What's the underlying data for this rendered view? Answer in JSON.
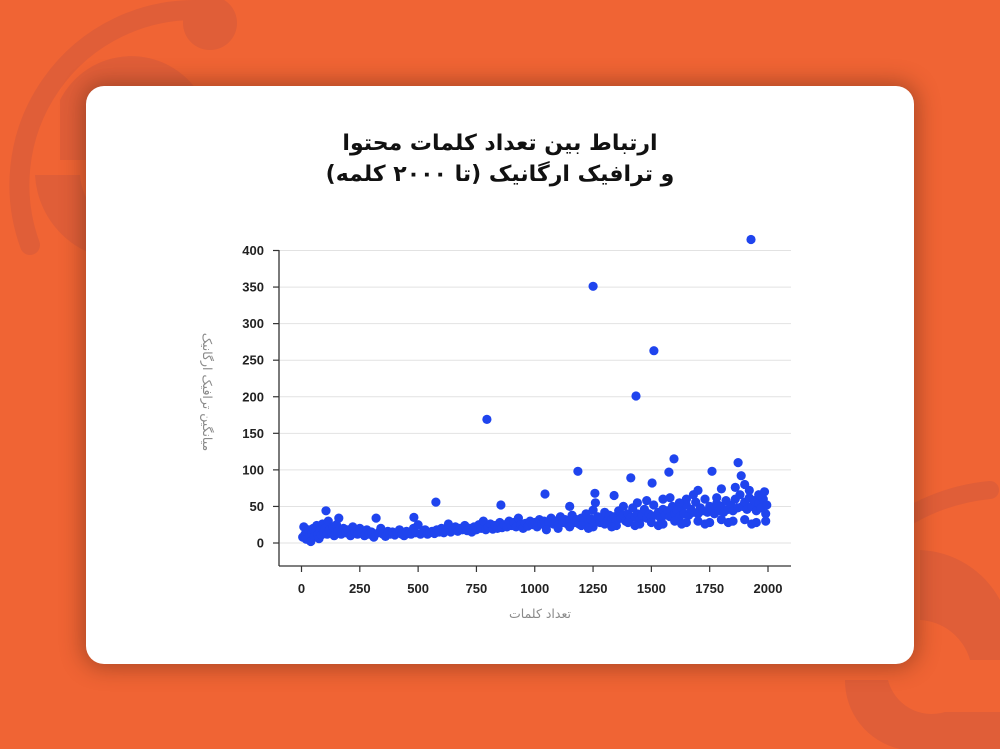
{
  "colors": {
    "background": "#f06434",
    "background_deco": "#e05e38",
    "card": "#ffffff",
    "point": "#1f44ee",
    "grid": "#e2e2e2",
    "axis": "#333333"
  },
  "title_line1": "ارتباط بین تعداد کلمات محتوا",
  "title_line2": "و ترافیک ارگانیک (تا ۲۰۰۰ کلمه)",
  "chart_data": {
    "type": "scatter",
    "title": "ارتباط بین تعداد کلمات محتوا و ترافیک ارگانیک (تا ۲۰۰۰ کلمه)",
    "xlabel": "تعداد کلمات",
    "ylabel": "میانگین ترافیک ارگانیک",
    "xlim": [
      -100,
      2100
    ],
    "ylim": [
      -30,
      415
    ],
    "x_ticks": [
      0,
      250,
      500,
      750,
      1000,
      1250,
      1500,
      1750,
      2000
    ],
    "x_tick_labels": [
      "0",
      "250",
      "500",
      "750",
      "1000",
      "1250",
      "1500",
      "1750",
      "2000"
    ],
    "y_ticks": [
      0,
      50,
      100,
      150,
      200,
      250,
      300,
      350,
      400
    ],
    "y_tick_labels": [
      "0",
      "50",
      "100",
      "150",
      "200",
      "250",
      "300",
      "350",
      "400"
    ],
    "grid": "horizontal",
    "legend": "none",
    "outliers": [
      [
        1927,
        415
      ],
      [
        1250,
        351
      ],
      [
        1511,
        263
      ],
      [
        1434,
        201
      ],
      [
        795,
        169
      ],
      [
        1597,
        115
      ],
      [
        1185,
        98
      ],
      [
        1872,
        110
      ],
      [
        1760,
        98
      ],
      [
        1575,
        97
      ],
      [
        1412,
        89
      ],
      [
        1503,
        82
      ],
      [
        576,
        56
      ],
      [
        1044,
        67
      ],
      [
        1258,
        68
      ],
      [
        1340,
        65
      ],
      [
        855,
        52
      ],
      [
        105,
        44
      ],
      [
        482,
        35
      ],
      [
        320,
        34
      ],
      [
        1885,
        92
      ],
      [
        1900,
        80
      ],
      [
        1700,
        72
      ],
      [
        1800,
        74
      ],
      [
        1985,
        70
      ],
      [
        1650,
        60
      ],
      [
        1550,
        60
      ],
      [
        1440,
        55
      ],
      [
        1150,
        50
      ],
      [
        1620,
        55
      ]
    ],
    "points": [
      [
        5,
        8
      ],
      [
        10,
        22
      ],
      [
        15,
        12
      ],
      [
        20,
        5
      ],
      [
        25,
        15
      ],
      [
        30,
        18
      ],
      [
        35,
        10
      ],
      [
        40,
        2
      ],
      [
        45,
        14
      ],
      [
        50,
        20
      ],
      [
        55,
        9
      ],
      [
        60,
        16
      ],
      [
        65,
        24
      ],
      [
        70,
        12
      ],
      [
        75,
        6
      ],
      [
        80,
        18
      ],
      [
        85,
        11
      ],
      [
        90,
        26
      ],
      [
        95,
        15
      ],
      [
        100,
        20
      ],
      [
        110,
        12
      ],
      [
        115,
        30
      ],
      [
        120,
        18
      ],
      [
        130,
        14
      ],
      [
        135,
        22
      ],
      [
        140,
        10
      ],
      [
        150,
        25
      ],
      [
        155,
        16
      ],
      [
        160,
        34
      ],
      [
        170,
        12
      ],
      [
        180,
        20
      ],
      [
        190,
        14
      ],
      [
        200,
        18
      ],
      [
        210,
        10
      ],
      [
        220,
        22
      ],
      [
        230,
        15
      ],
      [
        240,
        12
      ],
      [
        250,
        20
      ],
      [
        260,
        16
      ],
      [
        270,
        10
      ],
      [
        280,
        18
      ],
      [
        290,
        12
      ],
      [
        300,
        15
      ],
      [
        310,
        8
      ],
      [
        330,
        14
      ],
      [
        340,
        20
      ],
      [
        350,
        12
      ],
      [
        360,
        9
      ],
      [
        370,
        16
      ],
      [
        380,
        12
      ],
      [
        390,
        15
      ],
      [
        400,
        11
      ],
      [
        410,
        14
      ],
      [
        420,
        18
      ],
      [
        430,
        12
      ],
      [
        440,
        10
      ],
      [
        450,
        16
      ],
      [
        460,
        13
      ],
      [
        470,
        12
      ],
      [
        480,
        20
      ],
      [
        490,
        14
      ],
      [
        500,
        25
      ],
      [
        510,
        12
      ],
      [
        520,
        15
      ],
      [
        530,
        18
      ],
      [
        540,
        12
      ],
      [
        550,
        14
      ],
      [
        560,
        16
      ],
      [
        570,
        13
      ],
      [
        580,
        18
      ],
      [
        590,
        15
      ],
      [
        600,
        20
      ],
      [
        610,
        14
      ],
      [
        620,
        17
      ],
      [
        630,
        26
      ],
      [
        640,
        15
      ],
      [
        650,
        18
      ],
      [
        660,
        22
      ],
      [
        670,
        16
      ],
      [
        680,
        20
      ],
      [
        690,
        18
      ],
      [
        700,
        24
      ],
      [
        710,
        17
      ],
      [
        720,
        20
      ],
      [
        730,
        15
      ],
      [
        740,
        22
      ],
      [
        750,
        18
      ],
      [
        760,
        25
      ],
      [
        770,
        20
      ],
      [
        780,
        30
      ],
      [
        790,
        18
      ],
      [
        800,
        22
      ],
      [
        810,
        26
      ],
      [
        820,
        19
      ],
      [
        830,
        24
      ],
      [
        840,
        20
      ],
      [
        850,
        28
      ],
      [
        860,
        21
      ],
      [
        870,
        25
      ],
      [
        880,
        22
      ],
      [
        890,
        30
      ],
      [
        900,
        24
      ],
      [
        910,
        28
      ],
      [
        920,
        22
      ],
      [
        930,
        34
      ],
      [
        940,
        25
      ],
      [
        950,
        20
      ],
      [
        960,
        27
      ],
      [
        970,
        23
      ],
      [
        980,
        30
      ],
      [
        990,
        25
      ],
      [
        1000,
        28
      ],
      [
        1010,
        22
      ],
      [
        1020,
        32
      ],
      [
        1030,
        26
      ],
      [
        1040,
        30
      ],
      [
        1050,
        24
      ],
      [
        1060,
        28
      ],
      [
        1070,
        34
      ],
      [
        1080,
        26
      ],
      [
        1090,
        30
      ],
      [
        1100,
        25
      ],
      [
        1110,
        36
      ],
      [
        1120,
        28
      ],
      [
        1130,
        32
      ],
      [
        1140,
        26
      ],
      [
        1150,
        30
      ],
      [
        1160,
        38
      ],
      [
        1170,
        28
      ],
      [
        1180,
        32
      ],
      [
        1190,
        26
      ],
      [
        1200,
        34
      ],
      [
        1210,
        30
      ],
      [
        1220,
        40
      ],
      [
        1230,
        28
      ],
      [
        1240,
        33
      ],
      [
        1250,
        45
      ],
      [
        1260,
        30
      ],
      [
        1270,
        36
      ],
      [
        1280,
        28
      ],
      [
        1290,
        34
      ],
      [
        1300,
        42
      ],
      [
        1310,
        30
      ],
      [
        1320,
        38
      ],
      [
        1330,
        32
      ],
      [
        1340,
        36
      ],
      [
        1350,
        30
      ],
      [
        1360,
        44
      ],
      [
        1370,
        34
      ],
      [
        1380,
        38
      ],
      [
        1390,
        30
      ],
      [
        1400,
        40
      ],
      [
        1410,
        34
      ],
      [
        1420,
        48
      ],
      [
        1430,
        36
      ],
      [
        1440,
        40
      ],
      [
        1450,
        32
      ],
      [
        1460,
        38
      ],
      [
        1470,
        46
      ],
      [
        1480,
        34
      ],
      [
        1490,
        40
      ],
      [
        1500,
        36
      ],
      [
        1510,
        52
      ],
      [
        1520,
        38
      ],
      [
        1530,
        42
      ],
      [
        1540,
        34
      ],
      [
        1550,
        46
      ],
      [
        1560,
        38
      ],
      [
        1570,
        44
      ],
      [
        1580,
        36
      ],
      [
        1590,
        50
      ],
      [
        1600,
        40
      ],
      [
        1610,
        44
      ],
      [
        1620,
        36
      ],
      [
        1630,
        48
      ],
      [
        1640,
        40
      ],
      [
        1650,
        52
      ],
      [
        1660,
        38
      ],
      [
        1670,
        46
      ],
      [
        1680,
        42
      ],
      [
        1690,
        56
      ],
      [
        1700,
        40
      ],
      [
        1710,
        48
      ],
      [
        1720,
        44
      ],
      [
        1730,
        60
      ],
      [
        1740,
        42
      ],
      [
        1750,
        50
      ],
      [
        1760,
        46
      ],
      [
        1770,
        40
      ],
      [
        1780,
        54
      ],
      [
        1790,
        44
      ],
      [
        1800,
        50
      ],
      [
        1810,
        42
      ],
      [
        1820,
        58
      ],
      [
        1830,
        46
      ],
      [
        1840,
        52
      ],
      [
        1850,
        44
      ],
      [
        1860,
        60
      ],
      [
        1870,
        48
      ],
      [
        1880,
        66
      ],
      [
        1890,
        50
      ],
      [
        1900,
        56
      ],
      [
        1910,
        46
      ],
      [
        1920,
        62
      ],
      [
        1930,
        50
      ],
      [
        1940,
        58
      ],
      [
        1950,
        44
      ],
      [
        1960,
        54
      ],
      [
        1970,
        48
      ],
      [
        1980,
        60
      ],
      [
        1990,
        40
      ],
      [
        1995,
        52
      ],
      [
        1050,
        18
      ],
      [
        1100,
        20
      ],
      [
        1150,
        22
      ],
      [
        1200,
        24
      ],
      [
        1250,
        22
      ],
      [
        1300,
        26
      ],
      [
        1350,
        24
      ],
      [
        1400,
        28
      ],
      [
        1450,
        26
      ],
      [
        1500,
        28
      ],
      [
        1550,
        26
      ],
      [
        1600,
        30
      ],
      [
        1650,
        28
      ],
      [
        1700,
        30
      ],
      [
        1750,
        28
      ],
      [
        1800,
        32
      ],
      [
        1850,
        30
      ],
      [
        1900,
        32
      ],
      [
        1950,
        28
      ],
      [
        1990,
        30
      ],
      [
        1230,
        20
      ],
      [
        1330,
        22
      ],
      [
        1430,
        24
      ],
      [
        1530,
        24
      ],
      [
        1630,
        26
      ],
      [
        1730,
        26
      ],
      [
        1830,
        28
      ],
      [
        1930,
        26
      ],
      [
        1260,
        55
      ],
      [
        1380,
        50
      ],
      [
        1480,
        58
      ],
      [
        1580,
        62
      ],
      [
        1680,
        66
      ],
      [
        1780,
        62
      ],
      [
        1860,
        76
      ],
      [
        1920,
        72
      ],
      [
        1960,
        66
      ]
    ]
  }
}
